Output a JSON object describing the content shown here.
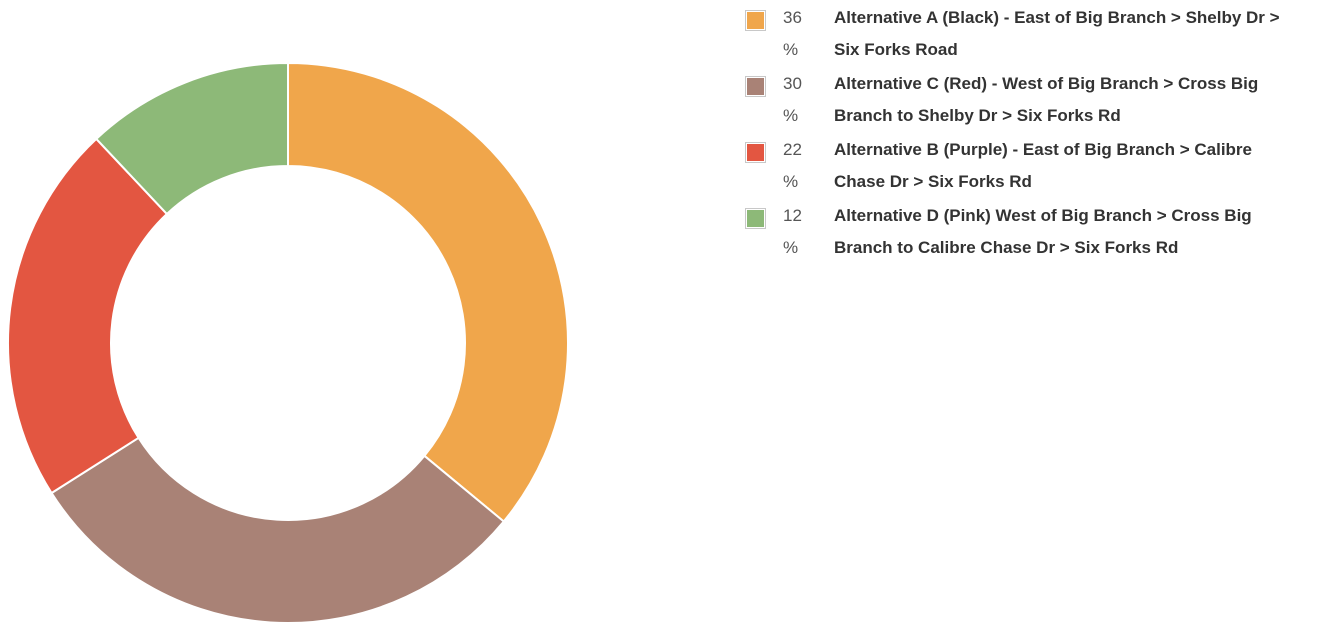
{
  "chart_data": {
    "type": "donut",
    "categories": [
      "Alternative A (Black) - East of Big Branch > Shelby Dr > Six Forks Road",
      "Alternative C (Red) - West of Big Branch > Cross Big Branch to Shelby Dr > Six Forks Rd",
      "Alternative B (Purple) - East of Big Branch > Calibre Chase Dr > Six Forks Rd",
      "Alternative D (Pink) West of Big Branch > Cross Big Branch to Calibre Chase Dr > Six Forks Rd"
    ],
    "values": [
      36,
      30,
      22,
      12
    ],
    "value_labels": [
      "36 %",
      "30 %",
      "22 %",
      "12 %"
    ],
    "colors": [
      "#f0a64b",
      "#a98276",
      "#e35641",
      "#8db978"
    ]
  }
}
